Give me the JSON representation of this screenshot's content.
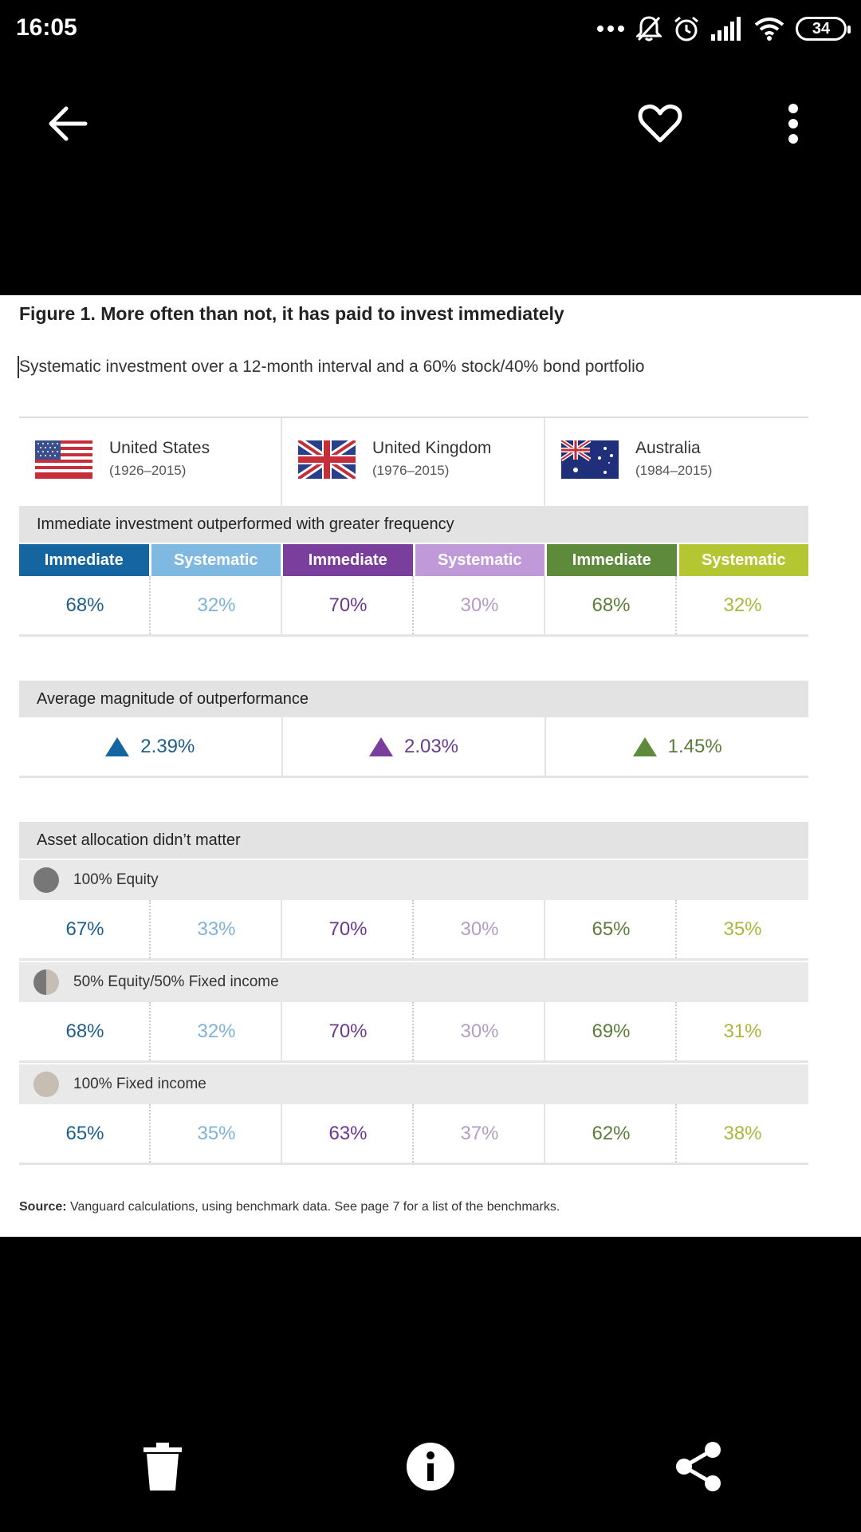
{
  "status_bar": {
    "time": "16:05",
    "battery": "34",
    "icons": [
      "dots-icon",
      "bell-off-icon",
      "alarm-icon",
      "signal-icon",
      "wifi-icon",
      "battery-icon"
    ]
  },
  "app_bar": {
    "icons": [
      "back-arrow-icon",
      "heart-icon",
      "more-vert-icon"
    ]
  },
  "figure": {
    "title": "Figure 1. More often than not, it has paid to invest immediately",
    "subtitle": "Systematic investment over a 12-month interval and a 60% stock/40% bond portfolio",
    "countries": [
      {
        "name": "United States",
        "years": "(1926–2015)",
        "flag": "us-flag-icon"
      },
      {
        "name": "United Kingdom",
        "years": "(1976–2015)",
        "flag": "uk-flag-icon"
      },
      {
        "name": "Australia",
        "years": "(1984–2015)",
        "flag": "australia-flag-icon"
      }
    ],
    "section1_title": "Immediate investment outperformed with greater frequency",
    "headers": [
      "Immediate",
      "Systematic",
      "Immediate",
      "Systematic",
      "Immediate",
      "Systematic"
    ],
    "header_colors": [
      "#1565a0",
      "#7fb8e0",
      "#7a3e9d",
      "#c09ad8",
      "#5e8a3c",
      "#b5c633"
    ],
    "value_colors": [
      "#1f5f8b",
      "#7fb2d8",
      "#6b3a8f",
      "#b49cc8",
      "#5b7d3a",
      "#a9b83a"
    ],
    "section1_values": [
      "68%",
      "32%",
      "70%",
      "30%",
      "68%",
      "32%"
    ],
    "section2_title": "Average magnitude of outperformance",
    "magnitudes": [
      "2.39%",
      "2.03%",
      "1.45%"
    ],
    "magnitude_colors": [
      "#1565a0",
      "#7a3e9d",
      "#5e8a3c"
    ],
    "section3_title": "Asset allocation didn’t matter",
    "allocations": [
      {
        "label": "100% Equity",
        "values": [
          "67%",
          "33%",
          "70%",
          "30%",
          "65%",
          "35%"
        ]
      },
      {
        "label": "50% Equity/50% Fixed income",
        "values": [
          "68%",
          "32%",
          "70%",
          "30%",
          "69%",
          "31%"
        ]
      },
      {
        "label": "100% Fixed income",
        "values": [
          "65%",
          "35%",
          "63%",
          "37%",
          "62%",
          "38%"
        ]
      }
    ],
    "source_label": "Source:",
    "source_text": " Vanguard calculations, using benchmark data. See page 7 for a list of the benchmarks."
  },
  "bottom_bar": {
    "icons": [
      "delete-icon",
      "info-icon",
      "share-icon"
    ]
  }
}
